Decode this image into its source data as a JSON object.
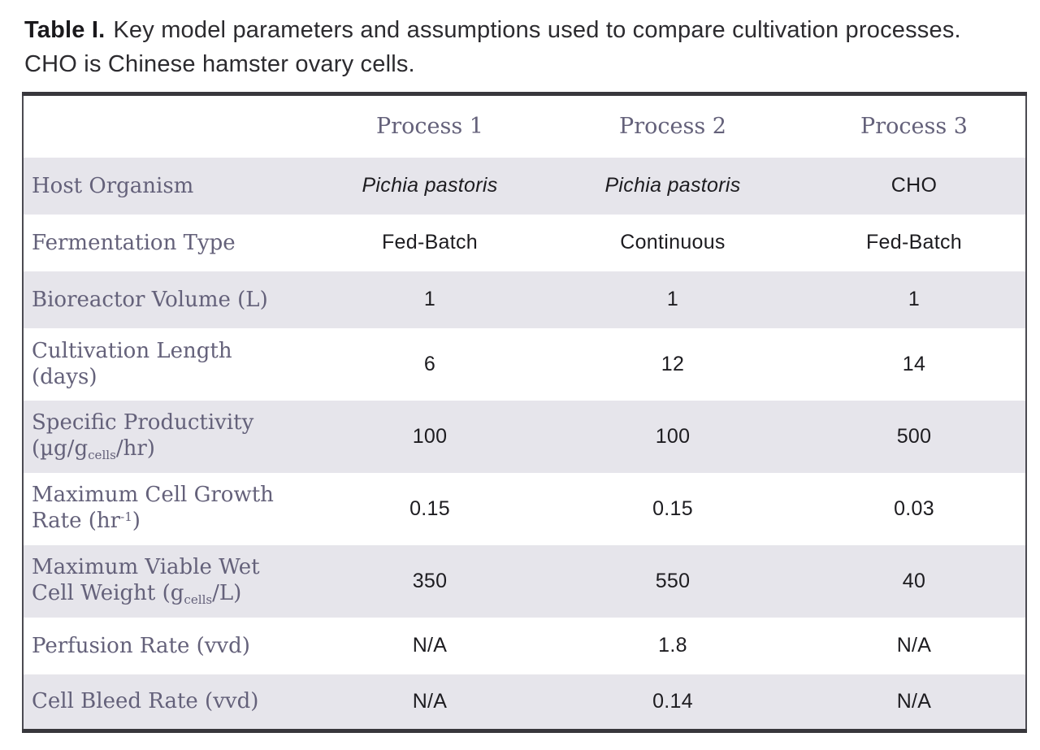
{
  "caption": {
    "label": "Table I.",
    "text": "Key model parameters and assumptions used to compare cultivation processes. CHO is Chinese hamster ovary cells."
  },
  "table": {
    "columns": [
      "",
      "Process 1",
      "Process 2",
      "Process 3"
    ],
    "rows": [
      {
        "label": "Host Organism",
        "values": [
          "*Pichia pastoris*",
          "*Pichia pastoris*",
          "CHO"
        ],
        "shaded": true
      },
      {
        "label": "Fermentation Type",
        "values": [
          "Fed-Batch",
          "Continuous",
          "Fed-Batch"
        ],
        "shaded": false
      },
      {
        "label": "Bioreactor Volume (L)",
        "values": [
          "1",
          "1",
          "1"
        ],
        "shaded": true
      },
      {
        "label": "Cultivation Length\n(days)",
        "values": [
          "6",
          "12",
          "14"
        ],
        "shaded": false
      },
      {
        "label": "Specific Productivity\n(µg/g_{cells}/hr)",
        "values": [
          "100",
          "100",
          "500"
        ],
        "shaded": true
      },
      {
        "label": "Maximum Cell Growth\nRate (hr^{-1})",
        "values": [
          "0.15",
          "0.15",
          "0.03"
        ],
        "shaded": false
      },
      {
        "label": "Maximum Viable Wet\nCell Weight (g_{cells}/L)",
        "values": [
          "350",
          "550",
          "40"
        ],
        "shaded": true
      },
      {
        "label": "Perfusion Rate (vvd)",
        "values": [
          "N/A",
          "1.8",
          "N/A"
        ],
        "shaded": false
      },
      {
        "label": "Cell Bleed Rate (vvd)",
        "values": [
          "N/A",
          "0.14",
          "N/A"
        ],
        "shaded": true
      }
    ]
  },
  "colors": {
    "label_purple": "#64617A",
    "row_shade": "#E6E5EB",
    "border_dark": "#38373C",
    "border_side": "#4B4A51",
    "value_text": "#1D1C20",
    "caption_text": "#2C2B2F"
  }
}
